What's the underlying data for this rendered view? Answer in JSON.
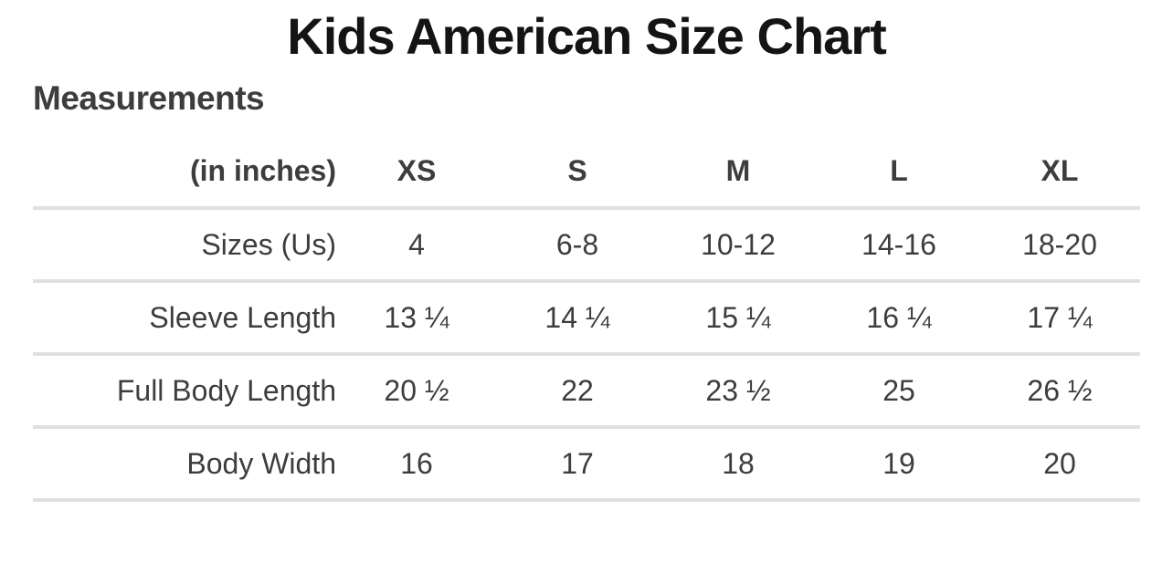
{
  "page": {
    "title": "Kids American Size Chart",
    "subtitle": "Measurements"
  },
  "chart_data": {
    "type": "table",
    "title": "Kids American Size Chart",
    "subtitle": "Measurements",
    "unit_label": "(in inches)",
    "columns": [
      "XS",
      "S",
      "M",
      "L",
      "XL"
    ],
    "rows": [
      {
        "label": "Sizes (Us)",
        "values": [
          "4",
          "6-8",
          "10-12",
          "14-16",
          "18-20"
        ]
      },
      {
        "label": "Sleeve Length",
        "values": [
          "13 ¼",
          "14 ¼",
          "15 ¼",
          "16 ¼",
          "17 ¼"
        ]
      },
      {
        "label": "Full Body Length",
        "values": [
          "20 ½",
          "22",
          "23 ½",
          "25",
          "26 ½"
        ]
      },
      {
        "label": "Body Width",
        "values": [
          "16",
          "17",
          "18",
          "19",
          "20"
        ]
      }
    ]
  },
  "colors": {
    "title_text": "#141414",
    "body_text": "#3d3d3d",
    "divider": "#e0e0e2",
    "background": "#ffffff"
  }
}
